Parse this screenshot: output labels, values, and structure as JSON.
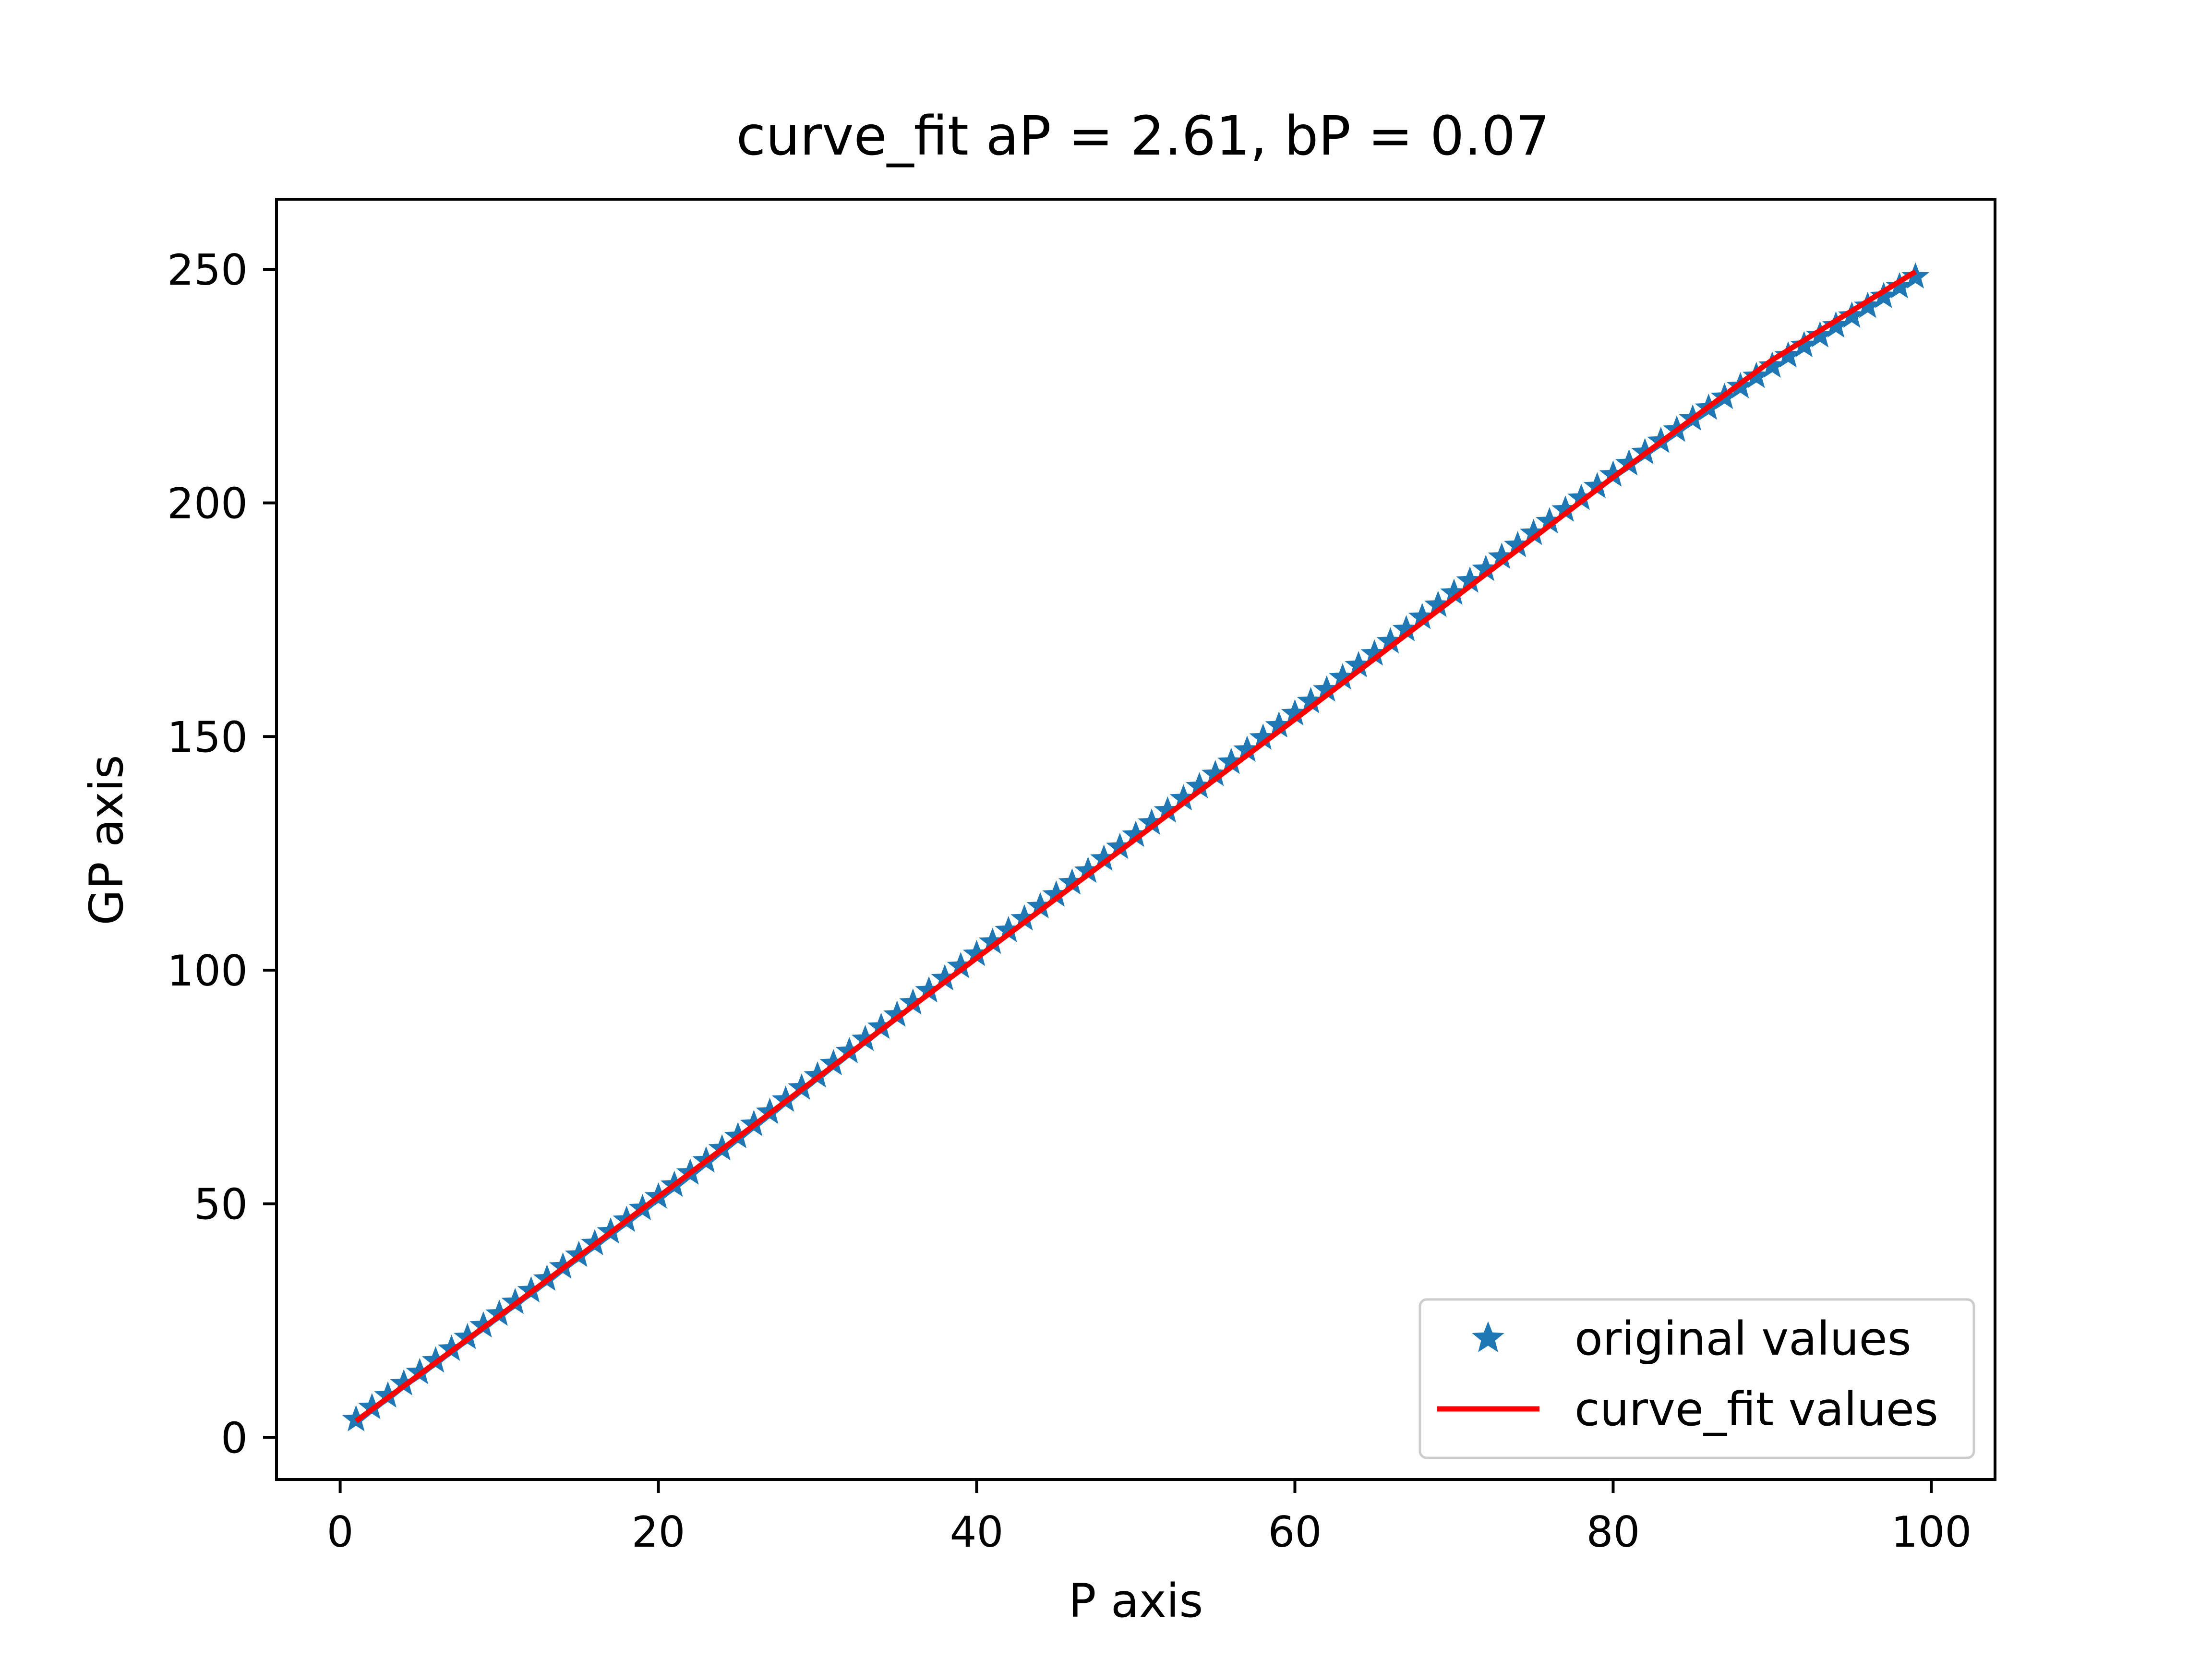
{
  "chart_data": {
    "type": "line",
    "title": "curve_fit aP = 2.61, bP = 0.07",
    "xlabel": "P axis",
    "ylabel": "GP axis",
    "xlim": [
      -4,
      104
    ],
    "ylim": [
      -9,
      265
    ],
    "xticks": [
      0,
      20,
      40,
      60,
      80,
      100
    ],
    "xtick_labels": [
      "0",
      "20",
      "40",
      "60",
      "80",
      "100"
    ],
    "yticks": [
      0,
      50,
      100,
      150,
      200,
      250
    ],
    "ytick_labels": [
      "0",
      "50",
      "100",
      "150",
      "200",
      "250"
    ],
    "grid": false,
    "legend_position": "lower-right",
    "series": [
      {
        "name": "original values",
        "kind": "scatter",
        "marker": "star",
        "color": "#1f77b4",
        "x": [
          1,
          2,
          3,
          4,
          5,
          6,
          7,
          8,
          9,
          10,
          11,
          12,
          13,
          14,
          15,
          16,
          17,
          18,
          19,
          20,
          21,
          22,
          23,
          24,
          25,
          26,
          27,
          28,
          29,
          30,
          31,
          32,
          33,
          34,
          35,
          36,
          37,
          38,
          39,
          40,
          41,
          42,
          43,
          44,
          45,
          46,
          47,
          48,
          49,
          50,
          51,
          52,
          53,
          54,
          55,
          56,
          57,
          58,
          59,
          60,
          61,
          62,
          63,
          64,
          65,
          66,
          67,
          68,
          69,
          70,
          71,
          72,
          73,
          74,
          75,
          76,
          77,
          78,
          79,
          80,
          81,
          82,
          83,
          84,
          85,
          86,
          87,
          88,
          89,
          90,
          91,
          92,
          93,
          94,
          95,
          96,
          97,
          98,
          99
        ],
        "y": [
          3.8,
          6.4,
          8.9,
          11.5,
          13.9,
          16.4,
          18.9,
          21.4,
          23.9,
          26.4,
          28.9,
          31.4,
          33.9,
          36.5,
          39.0,
          41.5,
          44.0,
          46.5,
          49.0,
          51.5,
          54.0,
          56.6,
          59.2,
          61.8,
          64.4,
          67.0,
          69.6,
          72.2,
          74.8,
          77.4,
          80.0,
          82.6,
          85.2,
          87.8,
          90.4,
          93.0,
          95.6,
          98.2,
          100.8,
          103.4,
          106.0,
          108.5,
          111.0,
          113.6,
          116.1,
          118.7,
          121.2,
          123.8,
          126.3,
          128.9,
          131.5,
          134.1,
          136.7,
          139.3,
          141.9,
          144.5,
          147.1,
          149.7,
          152.3,
          154.9,
          157.5,
          160.0,
          162.6,
          165.2,
          167.7,
          170.3,
          172.9,
          175.5,
          178.1,
          180.7,
          183.3,
          185.8,
          188.4,
          190.9,
          193.5,
          196.0,
          198.5,
          201.0,
          203.5,
          206.0,
          208.4,
          210.8,
          213.2,
          215.6,
          218.0,
          220.3,
          222.6,
          224.9,
          227.1,
          229.3,
          231.5,
          233.7,
          235.8,
          237.9,
          240.0,
          242.1,
          244.2,
          246.3,
          248.4
        ]
      },
      {
        "name": "curve_fit values",
        "kind": "line",
        "color": "#ff0000",
        "x": [
          1,
          10,
          20,
          30,
          40,
          50,
          60,
          70,
          80,
          90,
          99
        ],
        "y": [
          3.5,
          26.0,
          51.5,
          77.0,
          102.6,
          128.1,
          153.7,
          179.6,
          205.5,
          230.6,
          249.5
        ]
      }
    ]
  }
}
